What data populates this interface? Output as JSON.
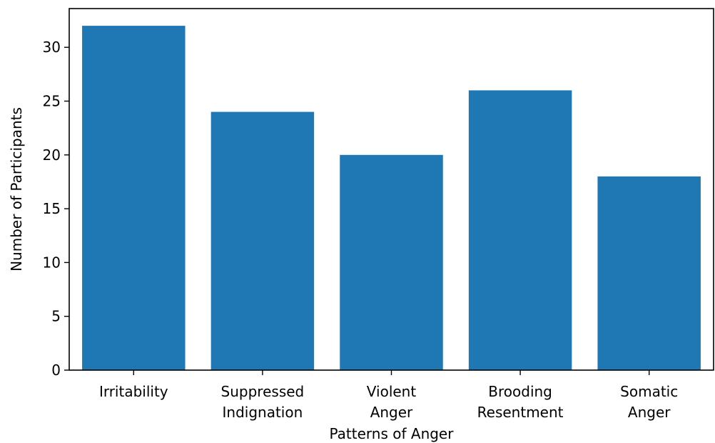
{
  "chart_data": {
    "type": "bar",
    "title": "",
    "xlabel": "Patterns of Anger",
    "ylabel": "Number of Participants",
    "categories": [
      [
        "Irritability"
      ],
      [
        "Suppressed",
        "Indignation"
      ],
      [
        "Violent",
        "Anger"
      ],
      [
        "Brooding",
        "Resentment"
      ],
      [
        "Somatic",
        "Anger"
      ]
    ],
    "values": [
      32,
      24,
      20,
      26,
      18
    ],
    "ylim": [
      0,
      33.6
    ],
    "yticks": [
      0,
      5,
      10,
      15,
      20,
      25,
      30
    ],
    "grid": false,
    "colors": {
      "bar": "#1f77b4",
      "axis": "#000000"
    }
  }
}
